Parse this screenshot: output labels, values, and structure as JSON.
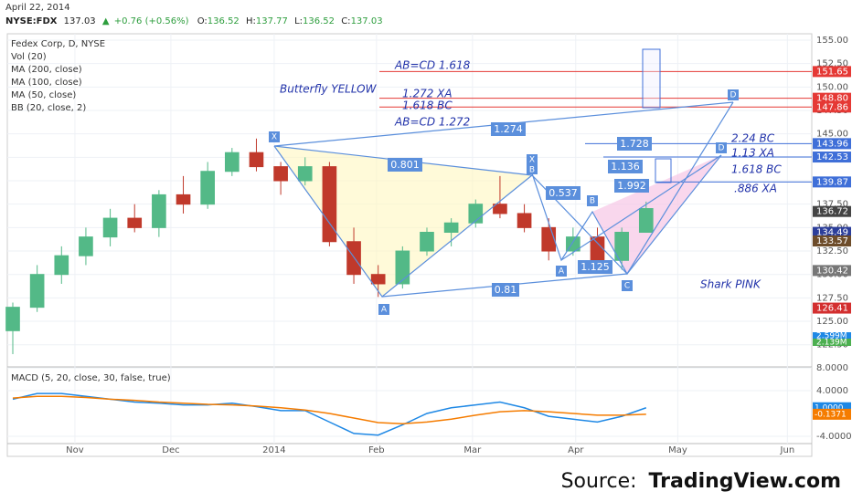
{
  "header": {
    "date": "April 22, 2014",
    "symbol": "NYSE:FDX",
    "last": "137.03",
    "change": "+0.76 (+0.56%)",
    "ohlc": [
      {
        "label": "O:",
        "value": "136.52"
      },
      {
        "label": "H:",
        "value": "137.77"
      },
      {
        "label": "L:",
        "value": "136.52"
      },
      {
        "label": "C:",
        "value": "137.03"
      }
    ]
  },
  "legend": [
    "Fedex Corp, D, NYSE",
    "Vol (20)",
    "MA (200, close)",
    "MA (100, close)",
    "MA (50, close)",
    "BB (20, close, 2)"
  ],
  "annotations": {
    "butterfly": "Butterfly YELLOW",
    "shark": "Shark PINK",
    "levels_text": [
      "AB=CD 1.618",
      "1.272 XA",
      "1.618 BC",
      "AB=CD 1.272",
      "2.24 BC",
      "1.13 XA",
      "1.618 BC",
      ".886 XA"
    ],
    "ratios": [
      "1.274",
      "0.801",
      "1.728",
      "1.136",
      "1.992",
      "0.537",
      "1.125",
      "0.81"
    ],
    "points": [
      "X",
      "A",
      "X",
      "B",
      "B",
      "A",
      "C",
      "D",
      "D"
    ]
  },
  "chart_data": [
    {
      "type": "candlestick",
      "open": [
        124,
        126.5,
        130,
        132,
        134,
        136,
        135,
        138.5,
        137.5,
        141,
        143,
        141.5,
        140,
        141.5,
        133.5,
        130,
        129,
        132.5,
        134.5,
        135.5,
        137.5,
        136.5,
        135,
        132.5,
        134,
        131.5,
        134.5
      ],
      "high": [
        127,
        131,
        133,
        135,
        137,
        137.5,
        139,
        140.5,
        142,
        143.5,
        144.5,
        142,
        142.5,
        142,
        135,
        131,
        133,
        135,
        136,
        138,
        140.5,
        137.5,
        136,
        135,
        135,
        135,
        137.77
      ],
      "low": [
        121.5,
        126,
        129,
        131,
        133,
        134.5,
        134,
        136.5,
        137,
        140.5,
        141,
        138.5,
        139.5,
        133,
        129,
        127.6,
        128.5,
        132,
        133,
        135,
        136,
        134.5,
        131.5,
        132,
        131,
        130.5,
        134.5
      ],
      "close": [
        126.5,
        130,
        132,
        134,
        136,
        135,
        138.5,
        137.5,
        141,
        143,
        141.5,
        140,
        141.5,
        133.5,
        130,
        129,
        132.5,
        134.5,
        135.5,
        137.5,
        136.5,
        135,
        132.5,
        134,
        131.5,
        134.5,
        137.03
      ],
      "up_color": "#53b987",
      "down_color": "#c0392b",
      "xlim": [
        -0.225,
        32.8
      ],
      "ylim": [
        120.33,
        155.68
      ],
      "yticks": [
        {
          "value": 155,
          "label": "155.00"
        },
        {
          "value": 152.5,
          "label": "152.50"
        },
        {
          "value": 150,
          "label": "150.00"
        },
        {
          "value": 147.5,
          "label": "147.50"
        },
        {
          "value": 145,
          "label": "145.00"
        },
        {
          "value": 142.5,
          "label": "142.50"
        },
        {
          "value": 140,
          "label": "140.00"
        },
        {
          "value": 137.5,
          "label": "137.50"
        },
        {
          "value": 135,
          "label": "135.00"
        },
        {
          "value": 132.5,
          "label": "132.50"
        },
        {
          "value": 130,
          "label": "130.00"
        },
        {
          "value": 127.5,
          "label": "127.50"
        },
        {
          "value": 125,
          "label": "125.00"
        },
        {
          "value": 122.5,
          "label": "122.50"
        }
      ],
      "grid": true,
      "levels": [
        {
          "value": 151.65,
          "label": "151.65",
          "color": "#e53935"
        },
        {
          "value": 148.8,
          "label": "148.80",
          "color": "#e53935"
        },
        {
          "value": 147.86,
          "label": "147.86",
          "color": "#e53935"
        },
        {
          "value": 143.96,
          "label": "143.96",
          "color": "#3f6fd8"
        },
        {
          "value": 142.53,
          "label": "142.53",
          "color": "#3f6fd8"
        },
        {
          "value": 139.87,
          "label": "139.87",
          "color": "#3f6fd8"
        }
      ],
      "markers": [
        {
          "value": 136.72,
          "label": "136.72",
          "color": "#444444"
        },
        {
          "value": 134.49,
          "label": "134.49",
          "color": "#2c3e9a"
        },
        {
          "value": 133.57,
          "label": "133.57",
          "color": "#6d4c2a"
        },
        {
          "value": 130.42,
          "label": "130.42",
          "color": "#777777"
        },
        {
          "value": 126.41,
          "label": "126.41",
          "color": "#d32f2f"
        }
      ],
      "volume_markers": [
        {
          "value": 2599000,
          "label": "2.599M",
          "color": "#1e88e5"
        },
        {
          "value": 2139000,
          "label": "2.139M",
          "color": "#4caf50"
        }
      ]
    },
    {
      "type": "line",
      "series": [
        {
          "color": "#1e88e5",
          "values": [
            2.5,
            3.5,
            3.5,
            3,
            2.5,
            2,
            1.8,
            1.5,
            1.5,
            1.8,
            1.2,
            0.5,
            0.5,
            -1.5,
            -3.5,
            -3.8,
            -2,
            0,
            1,
            1.5,
            2,
            1,
            -0.5,
            -1,
            -1.5,
            -0.5,
            1.0
          ],
          "marker": {
            "value": 1.0,
            "label": "1.0000"
          }
        },
        {
          "color": "#f57c00",
          "values": [
            2.7,
            3,
            3,
            2.8,
            2.5,
            2.3,
            2,
            1.8,
            1.6,
            1.5,
            1.3,
            1,
            0.6,
            0,
            -0.8,
            -1.6,
            -1.8,
            -1.5,
            -1,
            -0.3,
            0.3,
            0.5,
            0.3,
            0,
            -0.3,
            -0.3,
            -0.1371
          ],
          "marker": {
            "value": -0.1371,
            "label": "-0.1371"
          }
        }
      ],
      "title": "MACD (5, 20, close, 30, false, true)",
      "xlim": [
        -0.225,
        32.8
      ],
      "ylim": [
        -5.28,
        8.48
      ],
      "yticks": [
        {
          "value": 8,
          "label": "8.0000"
        },
        {
          "value": 4,
          "label": "4.0000"
        },
        {
          "value": -4,
          "label": "-4.0000"
        }
      ],
      "xticks": [
        {
          "value": 2.55,
          "label": "Nov"
        },
        {
          "value": 6.49,
          "label": "Dec"
        },
        {
          "value": 10.73,
          "label": "2014"
        },
        {
          "value": 14.93,
          "label": "Feb"
        },
        {
          "value": 18.87,
          "label": "Mar"
        },
        {
          "value": 23.11,
          "label": "Apr"
        },
        {
          "value": 27.3,
          "label": "May"
        },
        {
          "value": 31.8,
          "label": "Jun"
        }
      ]
    }
  ],
  "source": {
    "prefix": "Source:",
    "brand": "TradingView.com"
  }
}
